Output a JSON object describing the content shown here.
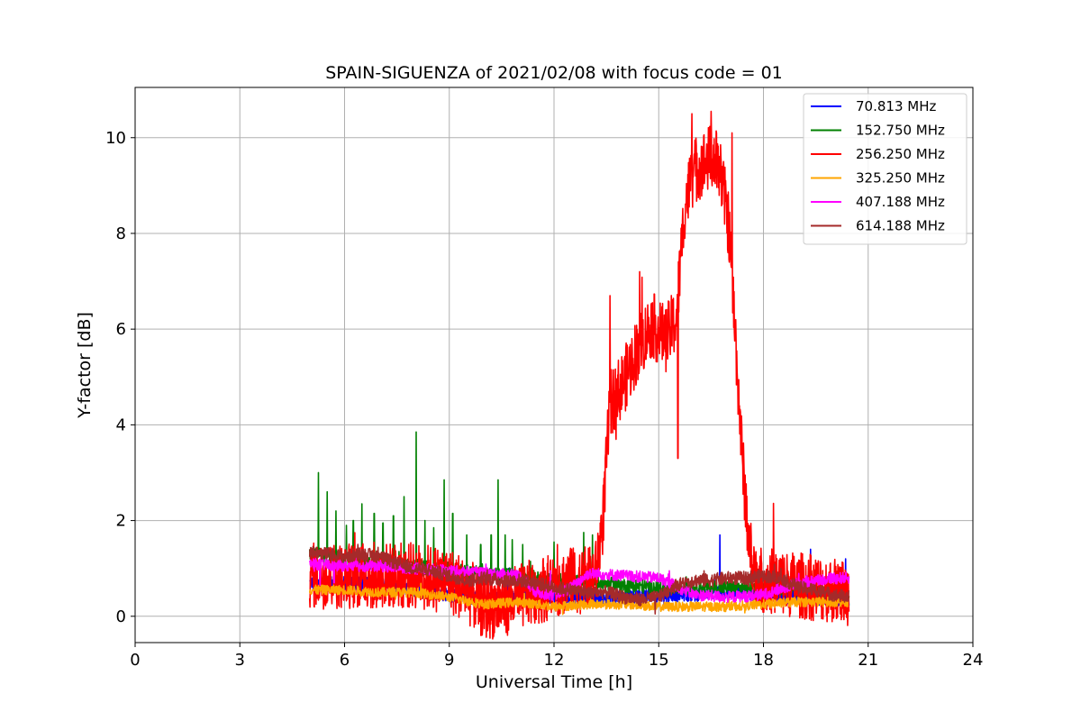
{
  "chart_data": {
    "type": "line",
    "title": "SPAIN-SIGUENZA of 2021/02/08 with focus code = 01",
    "xlabel": "Universal Time [h]",
    "ylabel": "Y-factor [dB]",
    "xlim": [
      0,
      24
    ],
    "ylim": [
      -0.55,
      11.05
    ],
    "xticks": [
      0,
      3,
      6,
      9,
      12,
      15,
      18,
      21,
      24
    ],
    "yticks": [
      0,
      2,
      4,
      6,
      8,
      10
    ],
    "grid": true,
    "legend_position": "top-right",
    "series": [
      {
        "name": " 70.813 MHz",
        "color": "#0000ff",
        "x": [
          5,
          6,
          7,
          8,
          9,
          10,
          11,
          12,
          13,
          14,
          15,
          16,
          16.5,
          17,
          18,
          19,
          20,
          20.45
        ],
        "y": [
          0.7,
          0.7,
          0.65,
          0.55,
          0.45,
          0.35,
          0.4,
          0.4,
          0.35,
          0.4,
          0.45,
          0.45,
          0.5,
          0.5,
          0.45,
          0.4,
          0.35,
          0.3
        ],
        "noise": 0.15,
        "spikes": [
          [
            16.75,
            1.7
          ],
          [
            19.35,
            1.4
          ],
          [
            20.35,
            1.2
          ],
          [
            10.7,
            1.0
          ]
        ]
      },
      {
        "name": "152.750 MHz",
        "color": "#008000",
        "x": [
          5,
          6,
          7,
          8,
          9,
          10,
          11,
          12,
          13,
          14,
          15,
          16,
          17,
          18,
          19,
          20,
          20.45
        ],
        "y": [
          1.3,
          1.2,
          1.1,
          1.05,
          0.95,
          0.9,
          0.85,
          0.75,
          0.7,
          0.65,
          0.6,
          0.6,
          0.6,
          0.6,
          0.55,
          0.5,
          0.5
        ],
        "noise": 0.15,
        "spikes": [
          [
            5.25,
            3.0
          ],
          [
            5.5,
            2.6
          ],
          [
            5.75,
            2.2
          ],
          [
            6.05,
            1.9
          ],
          [
            6.25,
            2.0
          ],
          [
            6.5,
            2.35
          ],
          [
            6.85,
            2.15
          ],
          [
            7.1,
            1.95
          ],
          [
            7.4,
            2.1
          ],
          [
            7.7,
            2.5
          ],
          [
            8.05,
            3.85
          ],
          [
            8.3,
            2.0
          ],
          [
            8.55,
            1.85
          ],
          [
            8.85,
            2.85
          ],
          [
            9.1,
            2.15
          ],
          [
            9.5,
            1.7
          ],
          [
            9.9,
            1.5
          ],
          [
            10.2,
            1.7
          ],
          [
            10.4,
            2.85
          ],
          [
            10.6,
            1.7
          ],
          [
            10.8,
            1.6
          ],
          [
            11.1,
            1.5
          ],
          [
            12.0,
            1.55
          ],
          [
            12.5,
            1.2
          ],
          [
            12.85,
            1.75
          ],
          [
            13.1,
            1.7
          ]
        ]
      },
      {
        "name": "256.250 MHz",
        "color": "#ff0000",
        "x": [
          5,
          6,
          7,
          8,
          9,
          9.5,
          10,
          10.5,
          11,
          12,
          12.5,
          13,
          13.2,
          13.4,
          13.6,
          14,
          14.4,
          14.8,
          15.2,
          15.5,
          15.75,
          16,
          16.5,
          16.75,
          17,
          17.2,
          17.4,
          17.6,
          17.8,
          18,
          19,
          20,
          20.45
        ],
        "y": [
          0.85,
          0.85,
          0.85,
          0.85,
          0.75,
          0.55,
          0.2,
          0.25,
          0.4,
          0.65,
          0.75,
          0.75,
          0.9,
          2.0,
          4.4,
          4.9,
          5.6,
          6.1,
          5.8,
          6.2,
          8.6,
          9.3,
          9.6,
          9.4,
          8.2,
          5.8,
          3.2,
          1.4,
          0.85,
          0.75,
          0.65,
          0.55,
          0.5
        ],
        "noise": 0.7,
        "spikes": [
          [
            15.95,
            10.5
          ],
          [
            16.5,
            10.55
          ],
          [
            17.1,
            10.1
          ],
          [
            14.45,
            7.2
          ],
          [
            13.6,
            6.7
          ],
          [
            15.2,
            6.4
          ],
          [
            15.55,
            3.3
          ],
          [
            12.1,
            1.5
          ],
          [
            12.5,
            1.4
          ]
        ]
      },
      {
        "name": "325.250 MHz",
        "color": "#ffa500",
        "x": [
          5,
          6,
          7,
          8,
          9,
          10,
          11,
          12,
          13,
          14,
          15,
          16,
          17,
          18,
          19,
          20,
          20.45
        ],
        "y": [
          0.55,
          0.55,
          0.5,
          0.5,
          0.4,
          0.25,
          0.3,
          0.2,
          0.25,
          0.25,
          0.2,
          0.2,
          0.2,
          0.25,
          0.3,
          0.3,
          0.3
        ],
        "noise": 0.1,
        "spikes": []
      },
      {
        "name": "407.188 MHz",
        "color": "#ff00ff",
        "x": [
          5,
          6,
          7,
          8,
          9,
          10,
          11,
          11.5,
          12,
          12.5,
          13,
          14,
          15,
          16,
          17,
          18,
          19,
          20,
          20.45
        ],
        "y": [
          1.1,
          1.05,
          1.05,
          1.0,
          0.95,
          0.9,
          0.85,
          0.5,
          0.45,
          0.6,
          0.9,
          0.85,
          0.8,
          0.45,
          0.4,
          0.45,
          0.7,
          0.8,
          0.8
        ],
        "noise": 0.12,
        "spikes": [
          [
            5.3,
            0.65
          ],
          [
            5.7,
            0.7
          ],
          [
            11.9,
            0.95
          ],
          [
            15.3,
            0.95
          ]
        ]
      },
      {
        "name": "614.188 MHz",
        "color": "#a52a2a",
        "x": [
          5,
          5.5,
          6,
          6.5,
          7,
          7.5,
          8,
          8.5,
          9,
          9.5,
          10,
          10.5,
          11,
          11.5,
          12,
          12.5,
          13,
          13.5,
          14,
          14.5,
          15,
          15.5,
          16,
          16.5,
          17,
          17.5,
          18,
          18.5,
          19,
          19.5,
          20,
          20.45
        ],
        "y": [
          1.35,
          1.3,
          1.25,
          1.3,
          1.25,
          1.1,
          1.0,
          0.95,
          0.85,
          0.75,
          0.8,
          0.75,
          0.75,
          0.7,
          0.6,
          0.55,
          0.5,
          0.5,
          0.4,
          0.35,
          0.4,
          0.65,
          0.75,
          0.75,
          0.8,
          0.8,
          0.85,
          0.8,
          0.6,
          0.55,
          0.45,
          0.4
        ],
        "noise": 0.14,
        "spikes": [
          [
            14.9,
            0.05
          ],
          [
            16.3,
            0.95
          ],
          [
            18.5,
            1.0
          ]
        ]
      }
    ]
  }
}
